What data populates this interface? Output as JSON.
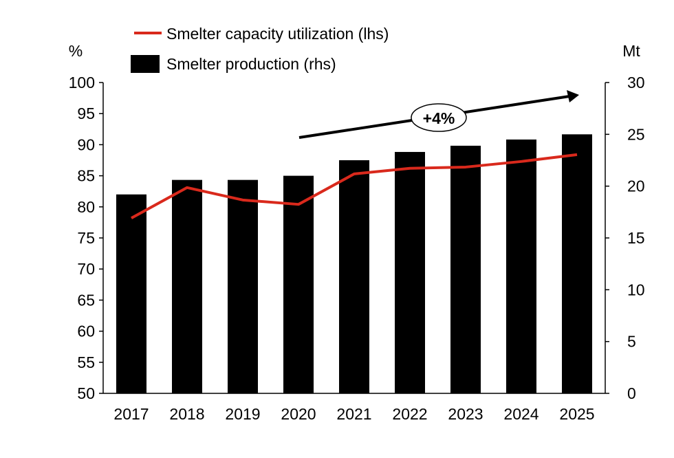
{
  "chart_data": {
    "type": "bar+line",
    "categories": [
      "2017",
      "2018",
      "2019",
      "2020",
      "2021",
      "2022",
      "2023",
      "2024",
      "2025"
    ],
    "series": [
      {
        "name": "Smelter capacity utilization (lhs)",
        "type": "line",
        "axis": "left",
        "color": "#d9291c",
        "values": [
          78.2,
          83.1,
          81.1,
          80.4,
          85.3,
          86.2,
          86.4,
          87.3,
          88.4
        ]
      },
      {
        "name": "Smelter production (rhs)",
        "type": "bar",
        "axis": "right",
        "color": "#000000",
        "values": [
          19.2,
          20.6,
          20.6,
          21.0,
          22.5,
          23.3,
          23.9,
          24.5,
          25.0
        ]
      }
    ],
    "left_axis": {
      "label": "%",
      "ylim": [
        50,
        100
      ],
      "ticks": [
        50,
        55,
        60,
        65,
        70,
        75,
        80,
        85,
        90,
        95,
        100
      ]
    },
    "right_axis": {
      "label": "Mt",
      "ylim": [
        0,
        30
      ],
      "ticks": [
        0,
        5,
        10,
        15,
        20,
        25,
        30
      ]
    },
    "annotation": {
      "text": "+4%",
      "from": "2020",
      "to": "2025"
    },
    "grid": false,
    "legend_position": "top-left"
  }
}
